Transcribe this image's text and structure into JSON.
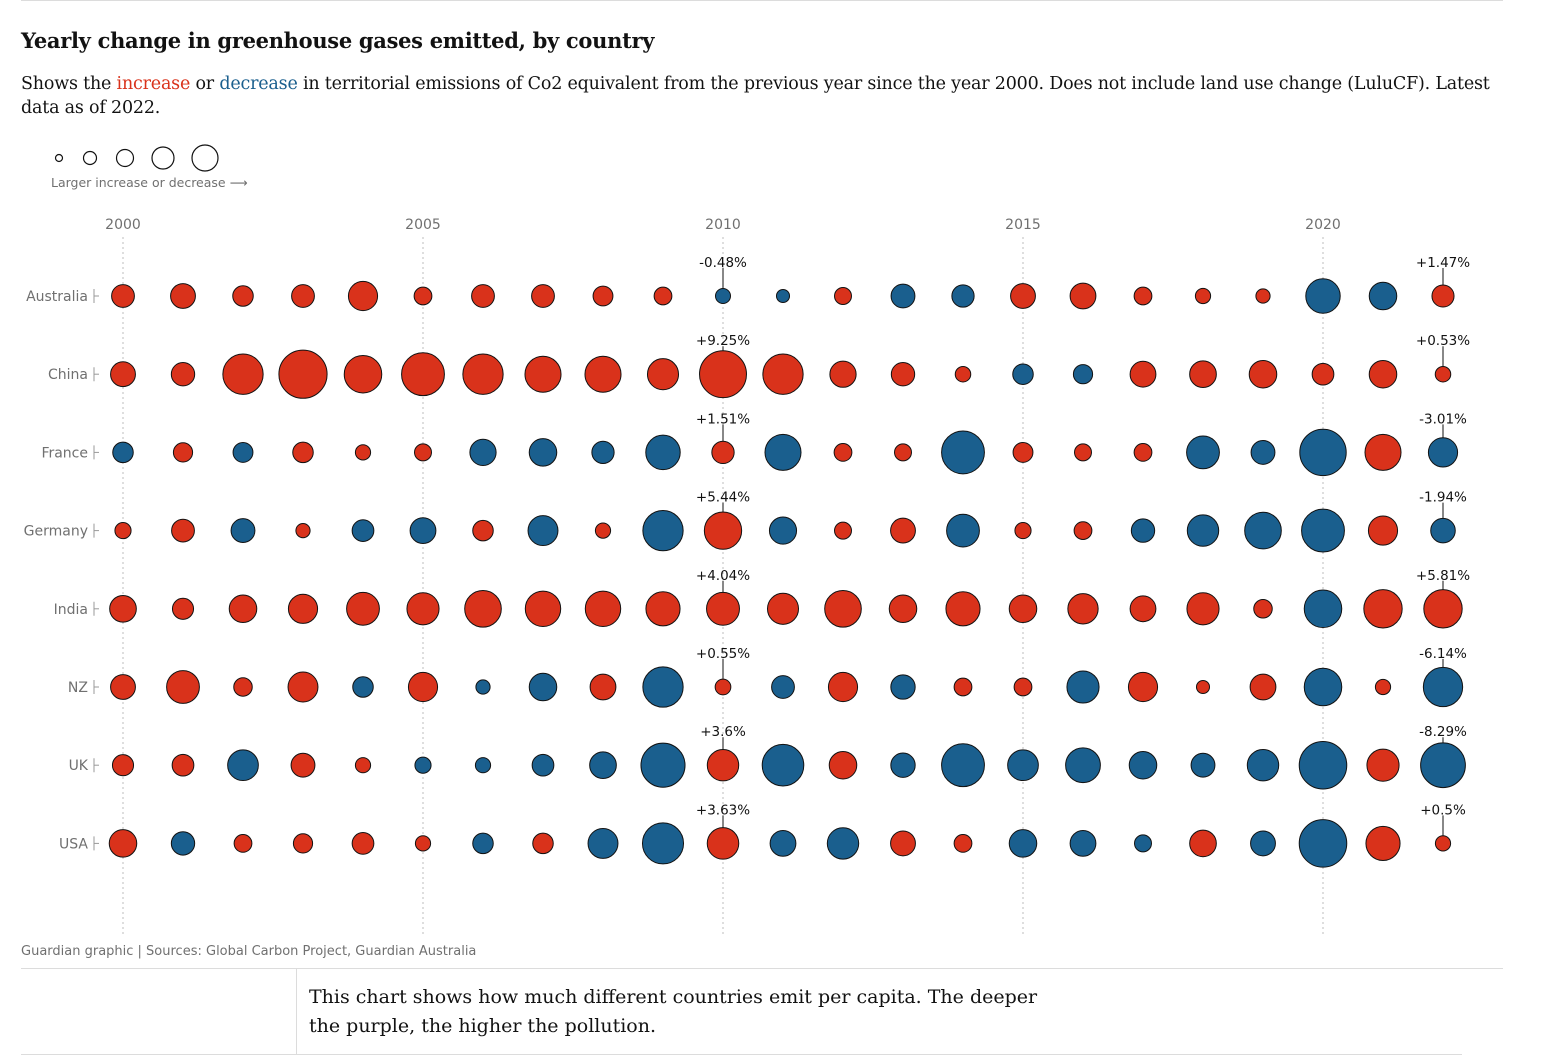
{
  "title": "Yearly change in greenhouse gases emitted, by country",
  "subtitle": {
    "pre": "Shows the ",
    "increase": "increase",
    "mid": " or ",
    "decrease": "decrease",
    "post": " in territorial emissions of Co2 equivalent from the previous year since the year 2000. Does not include land use change (LuluCF). Latest data as of 2022."
  },
  "legend": {
    "label": "Larger increase or decrease ⟶"
  },
  "source": "Guardian graphic | Sources: Global Carbon Project, Guardian Australia",
  "caption": "This chart shows how much different countries emit per capita. The deeper the purple, the higher the pollution.",
  "colors": {
    "increase": "#d9321b",
    "decrease": "#1a5f8e",
    "stroke": "#121212",
    "axis_text": "#707070"
  },
  "chart_data": {
    "type": "scatter",
    "encoding": "bubble size = magnitude of yearly % change; colour = increase (red) or decrease (blue)",
    "x": [
      2000,
      2001,
      2002,
      2003,
      2004,
      2005,
      2006,
      2007,
      2008,
      2009,
      2010,
      2011,
      2012,
      2013,
      2014,
      2015,
      2016,
      2017,
      2018,
      2019,
      2020,
      2021,
      2022
    ],
    "x_ticks": [
      2000,
      2005,
      2010,
      2015,
      2020
    ],
    "annotated_years": [
      2010,
      2022
    ],
    "series": [
      {
        "name": "Australia",
        "values": [
          1.6,
          2.0,
          1.2,
          1.6,
          3.0,
          0.8,
          1.6,
          1.6,
          1.1,
          0.8,
          -0.48,
          -0.3,
          0.7,
          -1.8,
          -1.5,
          2.0,
          2.2,
          0.8,
          0.5,
          0.4,
          -4.5,
          -2.6,
          1.47
        ]
      },
      {
        "name": "China",
        "values": [
          2.0,
          1.7,
          6.5,
          9.8,
          5.5,
          7.5,
          6.5,
          5.0,
          5.0,
          3.5,
          9.25,
          6.5,
          2.3,
          1.7,
          0.53,
          -1.2,
          -1.0,
          2.2,
          2.4,
          2.6,
          1.4,
          2.6,
          0.53
        ]
      },
      {
        "name": "France",
        "values": [
          -1.2,
          1.0,
          -1.1,
          1.2,
          0.5,
          0.7,
          -2.3,
          -2.6,
          -1.5,
          -4.5,
          1.51,
          -5.0,
          0.8,
          0.7,
          -7.5,
          1.1,
          0.7,
          0.8,
          -4.0,
          -1.8,
          -9.0,
          5.0,
          -3.01
        ]
      },
      {
        "name": "Germany",
        "values": [
          0.6,
          1.6,
          -1.8,
          0.4,
          -1.4,
          -2.2,
          1.2,
          -3.2,
          0.5,
          -6.5,
          5.44,
          -2.5,
          0.7,
          2.0,
          -4.0,
          0.6,
          0.8,
          -1.7,
          -3.6,
          -5.2,
          -7.5,
          3.0,
          -1.94
        ]
      },
      {
        "name": "India",
        "values": [
          2.4,
          1.3,
          2.6,
          3.0,
          4.0,
          3.8,
          5.2,
          4.8,
          4.8,
          4.4,
          4.04,
          3.5,
          5.2,
          2.6,
          4.4,
          2.6,
          3.3,
          2.2,
          3.8,
          0.9,
          -5.5,
          5.8,
          5.81
        ]
      },
      {
        "name": "NZ",
        "values": [
          2.0,
          4.0,
          0.9,
          3.2,
          -1.2,
          3.0,
          -0.4,
          -2.6,
          2.2,
          -6.5,
          0.55,
          -1.6,
          3.0,
          -1.9,
          0.8,
          0.8,
          -3.8,
          3.0,
          0.3,
          2.2,
          -5.5,
          0.5,
          -6.14
        ]
      },
      {
        "name": "UK",
        "values": [
          1.3,
          1.4,
          -3.4,
          1.8,
          0.5,
          -0.6,
          -0.5,
          -1.4,
          -2.4,
          -8.0,
          3.6,
          -7.0,
          2.6,
          -1.9,
          -7.5,
          -3.4,
          -4.6,
          -2.6,
          -1.8,
          -3.6,
          -9.5,
          3.8,
          -8.29
        ]
      },
      {
        "name": "USA",
        "values": [
          2.6,
          -1.7,
          0.8,
          1.0,
          1.4,
          0.5,
          -1.2,
          1.2,
          -3.2,
          -6.8,
          3.63,
          -2.2,
          -3.6,
          2.0,
          0.8,
          -2.6,
          -2.2,
          -0.7,
          2.4,
          -2.0,
          -9.5,
          4.4,
          0.5
        ]
      }
    ],
    "annotations": [
      {
        "country": "Australia",
        "year": 2010,
        "text": "-0.48%"
      },
      {
        "country": "Australia",
        "year": 2022,
        "text": "+1.47%"
      },
      {
        "country": "China",
        "year": 2010,
        "text": "+9.25%"
      },
      {
        "country": "China",
        "year": 2022,
        "text": "+0.53%"
      },
      {
        "country": "France",
        "year": 2010,
        "text": "+1.51%"
      },
      {
        "country": "France",
        "year": 2022,
        "text": "-3.01%"
      },
      {
        "country": "Germany",
        "year": 2010,
        "text": "+5.44%"
      },
      {
        "country": "Germany",
        "year": 2022,
        "text": "-1.94%"
      },
      {
        "country": "India",
        "year": 2010,
        "text": "+4.04%"
      },
      {
        "country": "India",
        "year": 2022,
        "text": "+5.81%"
      },
      {
        "country": "NZ",
        "year": 2010,
        "text": "+0.55%"
      },
      {
        "country": "NZ",
        "year": 2022,
        "text": "-6.14%"
      },
      {
        "country": "UK",
        "year": 2010,
        "text": "+3.6%"
      },
      {
        "country": "UK",
        "year": 2022,
        "text": "-8.29%"
      },
      {
        "country": "USA",
        "year": 2010,
        "text": "+3.63%"
      },
      {
        "country": "USA",
        "year": 2022,
        "text": "+0.5%"
      }
    ],
    "grid": "dotted vertical lines at tick years",
    "legend": "top-left, size scale"
  }
}
